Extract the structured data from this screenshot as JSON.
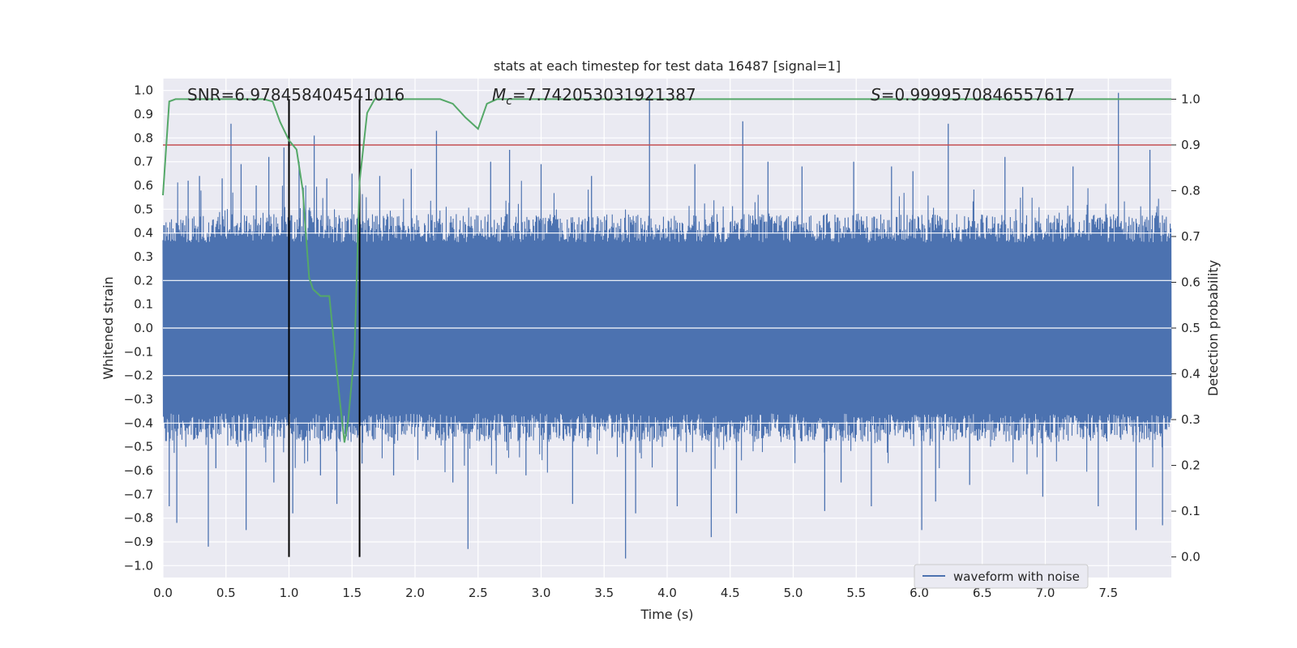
{
  "chart_data": {
    "type": "line",
    "title": "stats at each timestep for test data 16487 [signal=1]",
    "xlabel": "Time (s)",
    "ylabel": "Whitened strain",
    "y2label": "Detection probability",
    "xlim": [
      0,
      8
    ],
    "ylim": [
      -1.05,
      1.05
    ],
    "y2lim": [
      -0.045,
      1.045
    ],
    "xticks": [
      "0.0",
      "0.5",
      "1.0",
      "1.5",
      "2.0",
      "2.5",
      "3.0",
      "3.5",
      "4.0",
      "4.5",
      "5.0",
      "5.5",
      "6.0",
      "6.5",
      "7.0",
      "7.5"
    ],
    "yticks": [
      "1.0",
      "0.9",
      "0.8",
      "0.7",
      "0.6",
      "0.5",
      "0.4",
      "0.3",
      "0.2",
      "0.1",
      "0.0",
      "-0.1",
      "-0.2",
      "-0.3",
      "-0.4",
      "-0.5",
      "-0.6",
      "-0.7",
      "-0.8",
      "-0.9",
      "-1.0"
    ],
    "y2ticks": [
      "1.0",
      "0.9",
      "0.8",
      "0.7",
      "0.6",
      "0.5",
      "0.4",
      "0.3",
      "0.2",
      "0.1",
      "0.0"
    ],
    "annotations": {
      "snr_label": "SNR=6.978458404541016",
      "mc_symbol": "M",
      "mc_sub": "c",
      "mc_value": "=7.742053031921387",
      "s_symbol": "S",
      "s_value": "=0.9999570846557617"
    },
    "legend": {
      "label": "waveform with noise",
      "placement": "lower-right"
    },
    "vlines_x": [
      1.0,
      1.56
    ],
    "threshold_y2": 0.9,
    "series": [
      {
        "name": "waveform with noise",
        "color": "#4c72b0",
        "axis": "left",
        "envelope_note": "dense noise, bulk amplitude about ±0.4",
        "spikes": [
          [
            0.05,
            -0.75
          ],
          [
            0.11,
            -0.82
          ],
          [
            0.2,
            0.62
          ],
          [
            0.29,
            0.64
          ],
          [
            0.36,
            -0.92
          ],
          [
            0.42,
            -0.59
          ],
          [
            0.47,
            0.63
          ],
          [
            0.54,
            0.86
          ],
          [
            0.62,
            0.69
          ],
          [
            0.66,
            -0.85
          ],
          [
            0.74,
            0.6
          ],
          [
            0.84,
            0.72
          ],
          [
            0.88,
            -0.65
          ],
          [
            0.96,
            0.76
          ],
          [
            1.03,
            -0.78
          ],
          [
            1.08,
            0.7
          ],
          [
            1.2,
            0.81
          ],
          [
            1.25,
            -0.62
          ],
          [
            1.3,
            0.63
          ],
          [
            1.38,
            -0.74
          ],
          [
            1.5,
            0.65
          ],
          [
            1.58,
            -0.57
          ],
          [
            1.72,
            0.64
          ],
          [
            1.83,
            -0.62
          ],
          [
            1.97,
            0.67
          ],
          [
            2.17,
            0.83
          ],
          [
            2.3,
            -0.65
          ],
          [
            2.42,
            -0.93
          ],
          [
            2.6,
            0.7
          ],
          [
            2.75,
            0.75
          ],
          [
            2.88,
            -0.62
          ],
          [
            3.0,
            0.69
          ],
          [
            3.25,
            -0.74
          ],
          [
            3.4,
            0.64
          ],
          [
            3.67,
            -0.97
          ],
          [
            3.75,
            -0.78
          ],
          [
            3.86,
            0.98
          ],
          [
            4.08,
            -0.75
          ],
          [
            4.22,
            0.69
          ],
          [
            4.35,
            -0.88
          ],
          [
            4.55,
            -0.78
          ],
          [
            4.6,
            0.87
          ],
          [
            4.8,
            0.7
          ],
          [
            5.07,
            0.68
          ],
          [
            5.25,
            -0.77
          ],
          [
            5.38,
            -0.65
          ],
          [
            5.48,
            0.7
          ],
          [
            5.62,
            -0.75
          ],
          [
            5.78,
            0.68
          ],
          [
            5.95,
            0.66
          ],
          [
            6.02,
            -0.85
          ],
          [
            6.13,
            -0.73
          ],
          [
            6.23,
            0.86
          ],
          [
            6.4,
            -0.66
          ],
          [
            6.68,
            0.72
          ],
          [
            6.98,
            -0.71
          ],
          [
            7.22,
            0.68
          ],
          [
            7.42,
            -0.75
          ],
          [
            7.58,
            0.99
          ],
          [
            7.72,
            -0.85
          ],
          [
            7.83,
            0.75
          ],
          [
            7.93,
            -0.83
          ]
        ]
      },
      {
        "name": "",
        "color": "#55a868",
        "axis": "right",
        "x": [
          0,
          0.05,
          0.1,
          0.2,
          0.4,
          0.6,
          0.8,
          0.87,
          0.93,
          1.0,
          1.06,
          1.11,
          1.13,
          1.16,
          1.19,
          1.25,
          1.32,
          1.4,
          1.44,
          1.47,
          1.52,
          1.56,
          1.62,
          1.68,
          1.8,
          2.0,
          2.2,
          2.3,
          2.4,
          2.5,
          2.57,
          2.65,
          2.8,
          3.0,
          3.5,
          4.0,
          4.5,
          5.0,
          5.5,
          6.0,
          6.5,
          7.0,
          7.5,
          8.0
        ],
        "y": [
          0.79,
          0.995,
          1.0,
          1.0,
          1.0,
          1.0,
          1.0,
          0.995,
          0.95,
          0.91,
          0.89,
          0.8,
          0.72,
          0.61,
          0.585,
          0.57,
          0.57,
          0.35,
          0.25,
          0.3,
          0.45,
          0.82,
          0.97,
          1.0,
          1.0,
          1.0,
          1.0,
          0.99,
          0.96,
          0.935,
          0.99,
          1.0,
          1.0,
          1.0,
          1.0,
          1.0,
          1.0,
          1.0,
          1.0,
          1.0,
          1.0,
          1.0,
          1.0,
          1.0
        ]
      },
      {
        "name": "",
        "color": "#c44e52",
        "axis": "right",
        "y": 0.9
      }
    ]
  }
}
